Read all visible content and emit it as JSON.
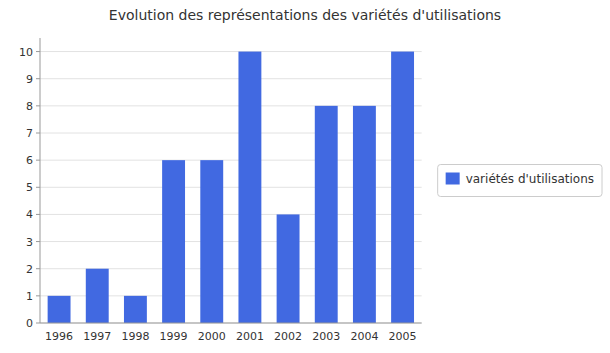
{
  "chart_data": {
    "type": "bar",
    "title": "Evolution des représentations des variétés d'utilisations",
    "categories": [
      "1996",
      "1997",
      "1998",
      "1999",
      "2000",
      "2001",
      "2002",
      "2003",
      "2004",
      "2005"
    ],
    "series": [
      {
        "name": "variétés d'utilisations",
        "color": "#4169E1",
        "values": [
          1,
          2,
          1,
          6,
          6,
          10,
          4,
          8,
          8,
          10
        ]
      }
    ],
    "ylim": [
      0,
      10.5
    ],
    "yticks": [
      0,
      1,
      2,
      3,
      4,
      5,
      6,
      7,
      8,
      9,
      10
    ],
    "grid": true,
    "legend": "right"
  }
}
